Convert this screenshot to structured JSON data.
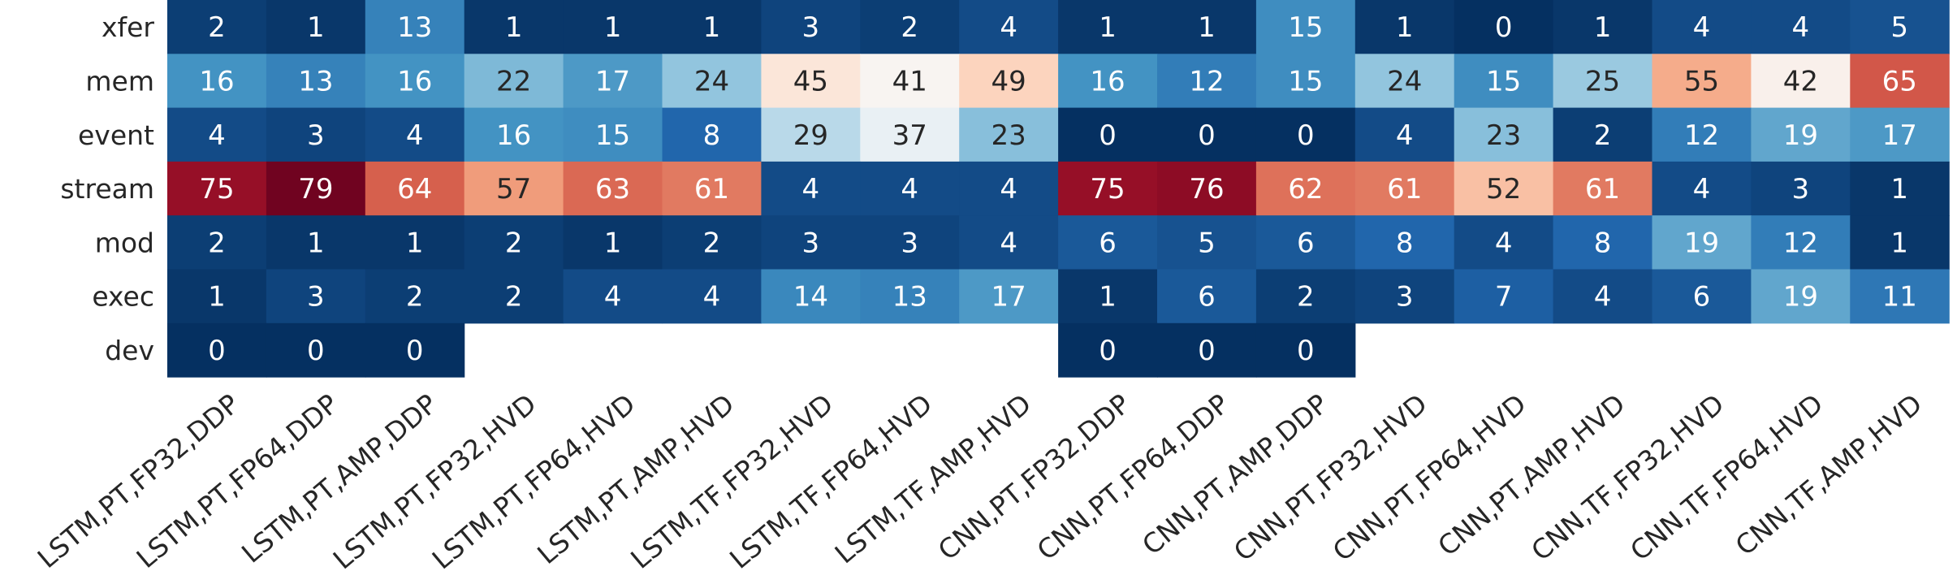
{
  "chart_data": {
    "type": "heatmap",
    "colormap": "RdBu_r",
    "color_range": [
      0,
      80
    ],
    "rows": [
      "xfer",
      "mem",
      "event",
      "stream",
      "mod",
      "exec",
      "dev"
    ],
    "columns": [
      "LSTM,PT,FP32,DDP",
      "LSTM,PT,FP64,DDP",
      "LSTM,PT,AMP,DDP",
      "LSTM,PT,FP32,HVD",
      "LSTM,PT,FP64,HVD",
      "LSTM,PT,AMP,HVD",
      "LSTM,TF,FP32,HVD",
      "LSTM,TF,FP64,HVD",
      "LSTM,TF,AMP,HVD",
      "CNN,PT,FP32,DDP",
      "CNN,PT,FP64,DDP",
      "CNN,PT,AMP,DDP",
      "CNN,PT,FP32,HVD",
      "CNN,PT,FP64,HVD",
      "CNN,PT,AMP,HVD",
      "CNN,TF,FP32,HVD",
      "CNN,TF,FP64,HVD",
      "CNN,TF,AMP,HVD"
    ],
    "values": [
      [
        2,
        1,
        13,
        1,
        1,
        1,
        3,
        2,
        4,
        1,
        1,
        15,
        1,
        0,
        1,
        4,
        4,
        5
      ],
      [
        16,
        13,
        16,
        22,
        17,
        24,
        45,
        41,
        49,
        16,
        12,
        15,
        24,
        15,
        25,
        55,
        42,
        65
      ],
      [
        4,
        3,
        4,
        16,
        15,
        8,
        29,
        37,
        23,
        0,
        0,
        0,
        4,
        23,
        2,
        12,
        19,
        17
      ],
      [
        75,
        79,
        64,
        57,
        63,
        61,
        4,
        4,
        4,
        75,
        76,
        62,
        61,
        52,
        61,
        4,
        3,
        1
      ],
      [
        2,
        1,
        1,
        2,
        1,
        2,
        3,
        3,
        4,
        6,
        5,
        6,
        8,
        4,
        8,
        19,
        12,
        1
      ],
      [
        1,
        3,
        2,
        2,
        4,
        4,
        14,
        13,
        17,
        1,
        6,
        2,
        3,
        7,
        4,
        6,
        19,
        11
      ],
      [
        0,
        0,
        0,
        null,
        null,
        null,
        null,
        null,
        null,
        0,
        0,
        0,
        null,
        null,
        null,
        null,
        null,
        null
      ]
    ],
    "colorbar": false,
    "annotations": true
  }
}
